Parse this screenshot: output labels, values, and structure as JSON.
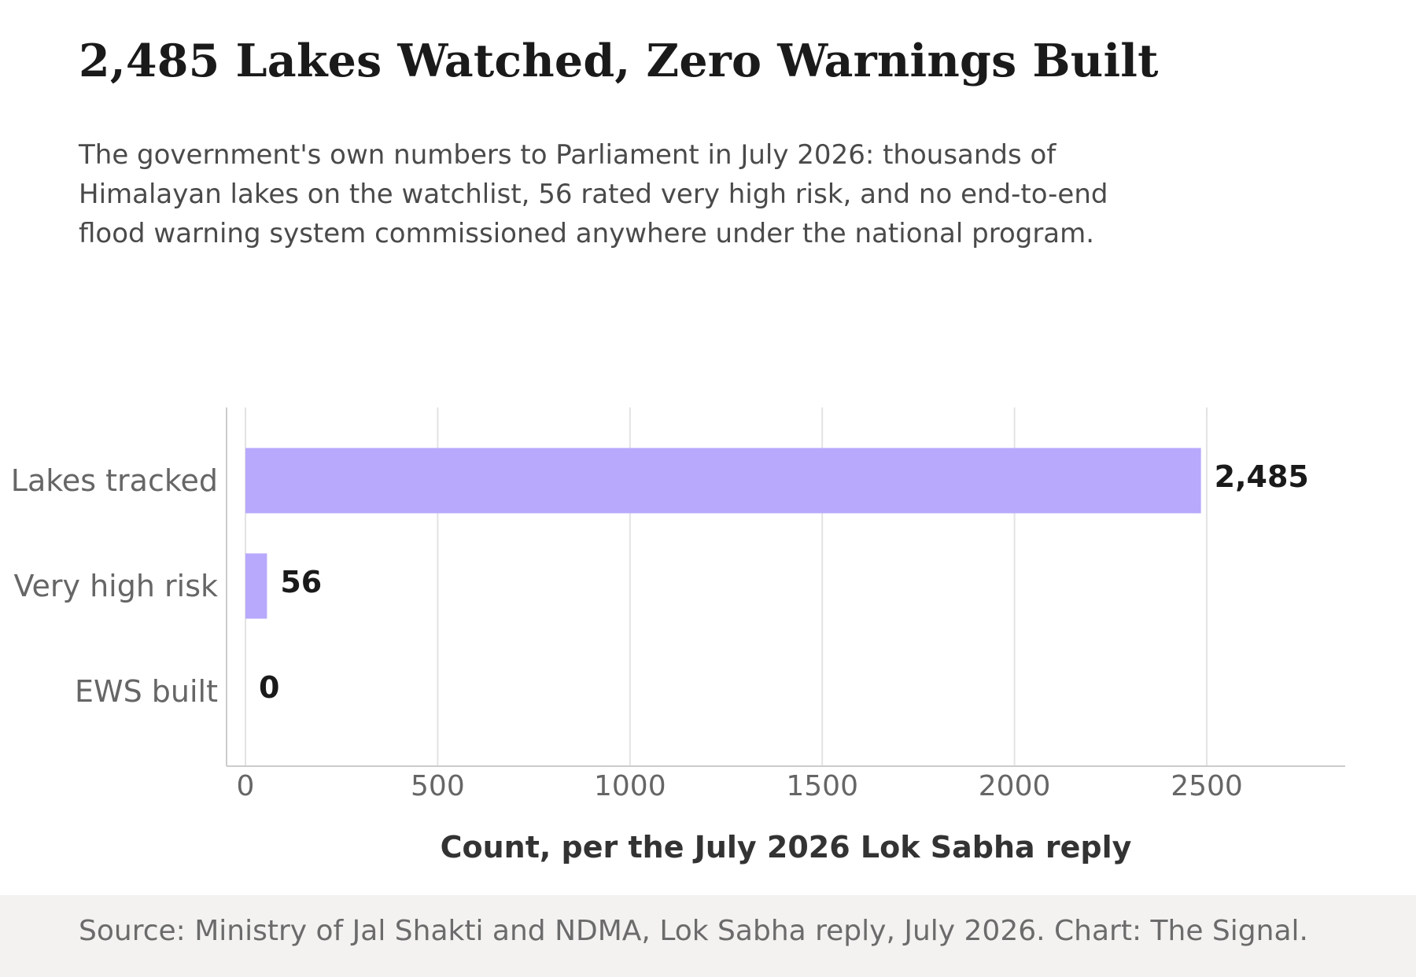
{
  "title": "2,485 Lakes Watched, Zero Warnings Built",
  "subtitle": "The government's own numbers to Parliament in July 2026: thousands of Himalayan lakes on the watchlist, 56 rated very high risk, and no end-to-end flood warning system commissioned anywhere under the national program.",
  "source": "Source: Ministry of Jal Shakti and NDMA, Lok Sabha reply, July 2026. Chart: The Signal.",
  "colors": {
    "bar": "#b8a9fc",
    "grid": "#e3e3e3",
    "axis": "#cccccc",
    "category_label": "#666666",
    "value_label": "#1a1a1a",
    "xlabel": "#333333",
    "source_band": "#f3f2f0"
  },
  "chart_data": {
    "type": "bar",
    "orientation": "horizontal",
    "categories": [
      "Lakes tracked",
      "Very high risk",
      "EWS built"
    ],
    "values": [
      2485,
      56,
      0
    ],
    "value_labels": [
      "2,485",
      "56",
      "0"
    ],
    "xlabel": "Count, per the July 2026 Lok Sabha reply",
    "ylabel": "",
    "xlim": [
      -50,
      2850
    ],
    "xticks": [
      0,
      500,
      1000,
      1500,
      2000,
      2500
    ],
    "xtick_labels": [
      "0",
      "500",
      "1000",
      "1500",
      "2000",
      "2500"
    ],
    "grid": "vertical",
    "legend": "none"
  }
}
